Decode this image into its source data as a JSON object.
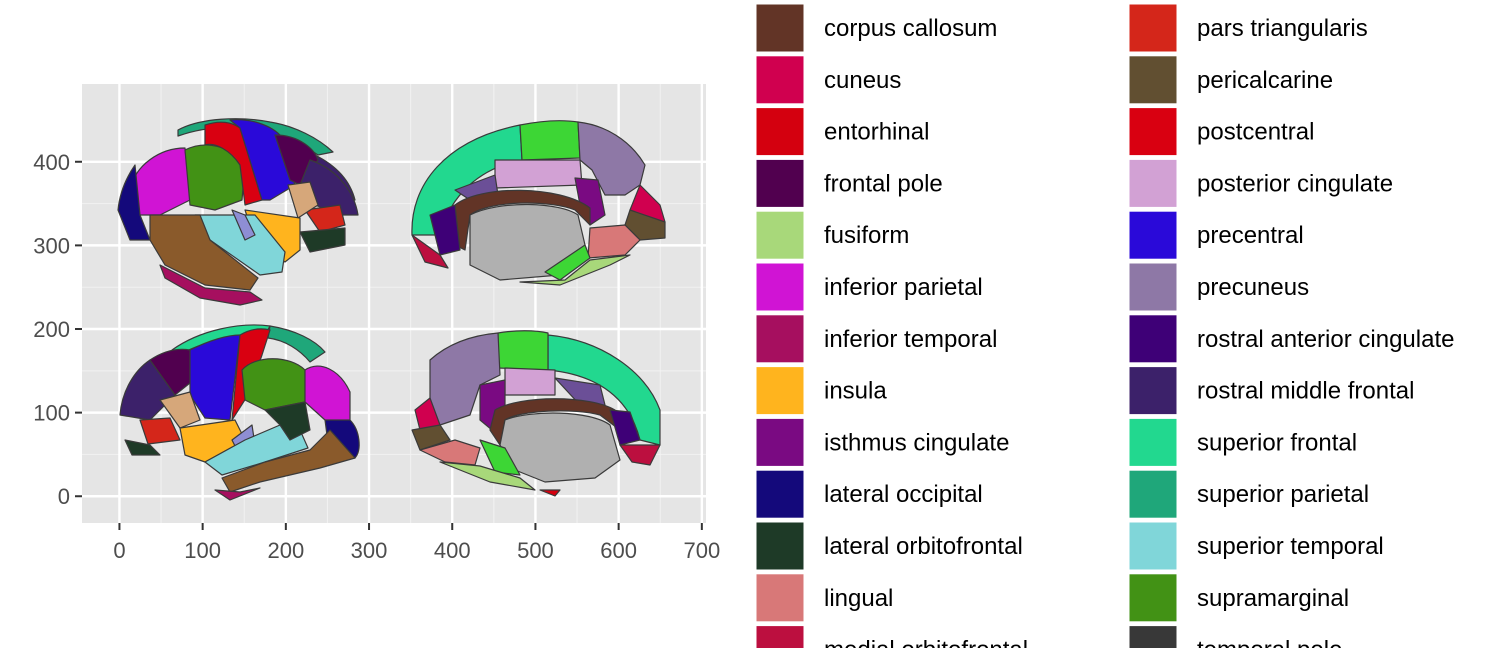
{
  "chart_data": {
    "type": "map",
    "title": "",
    "xlabel": "",
    "ylabel": "",
    "xlim": [
      -45,
      705
    ],
    "ylim": [
      -32,
      493
    ],
    "x_ticks": [
      0,
      100,
      200,
      300,
      400,
      500,
      600,
      700
    ],
    "y_ticks": [
      0,
      100,
      200,
      300,
      400
    ],
    "grid": true,
    "panel_background": "#e5e5e5",
    "legend_position": "right",
    "legend": [
      {
        "label": "corpus callosum",
        "color": "#623426"
      },
      {
        "label": "cuneus",
        "color": "#d0004f"
      },
      {
        "label": "entorhinal",
        "color": "#d4000f"
      },
      {
        "label": "frontal pole",
        "color": "#51004f"
      },
      {
        "label": "fusiform",
        "color": "#a8d87a"
      },
      {
        "label": "inferior parietal",
        "color": "#d014d4"
      },
      {
        "label": "inferior temporal",
        "color": "#a60f5f"
      },
      {
        "label": "insula",
        "color": "#ffb41e"
      },
      {
        "label": "isthmus cingulate",
        "color": "#7a0a82"
      },
      {
        "label": "lateral occipital",
        "color": "#14097b"
      },
      {
        "label": "lateral orbitofrontal",
        "color": "#1e3a27"
      },
      {
        "label": "lingual",
        "color": "#d87878"
      },
      {
        "label": "medial orbitofrontal",
        "color": "#bc0f3f"
      },
      {
        "label": "pars triangularis",
        "color": "#d4261a"
      },
      {
        "label": "pericalcarine",
        "color": "#614f31"
      },
      {
        "label": "postcentral",
        "color": "#d90011"
      },
      {
        "label": "posterior cingulate",
        "color": "#d2a1d4"
      },
      {
        "label": "precentral",
        "color": "#2a09d9"
      },
      {
        "label": "precuneus",
        "color": "#8e78a6"
      },
      {
        "label": "rostral anterior cingulate",
        "color": "#3e0077"
      },
      {
        "label": "rostral middle frontal",
        "color": "#3c216a"
      },
      {
        "label": "superior frontal",
        "color": "#22d88f"
      },
      {
        "label": "superior parietal",
        "color": "#1fa77a"
      },
      {
        "label": "superior temporal",
        "color": "#80d6d9"
      },
      {
        "label": "supramarginal",
        "color": "#429215"
      },
      {
        "label": "temporal pole",
        "color": "#383838"
      }
    ]
  }
}
